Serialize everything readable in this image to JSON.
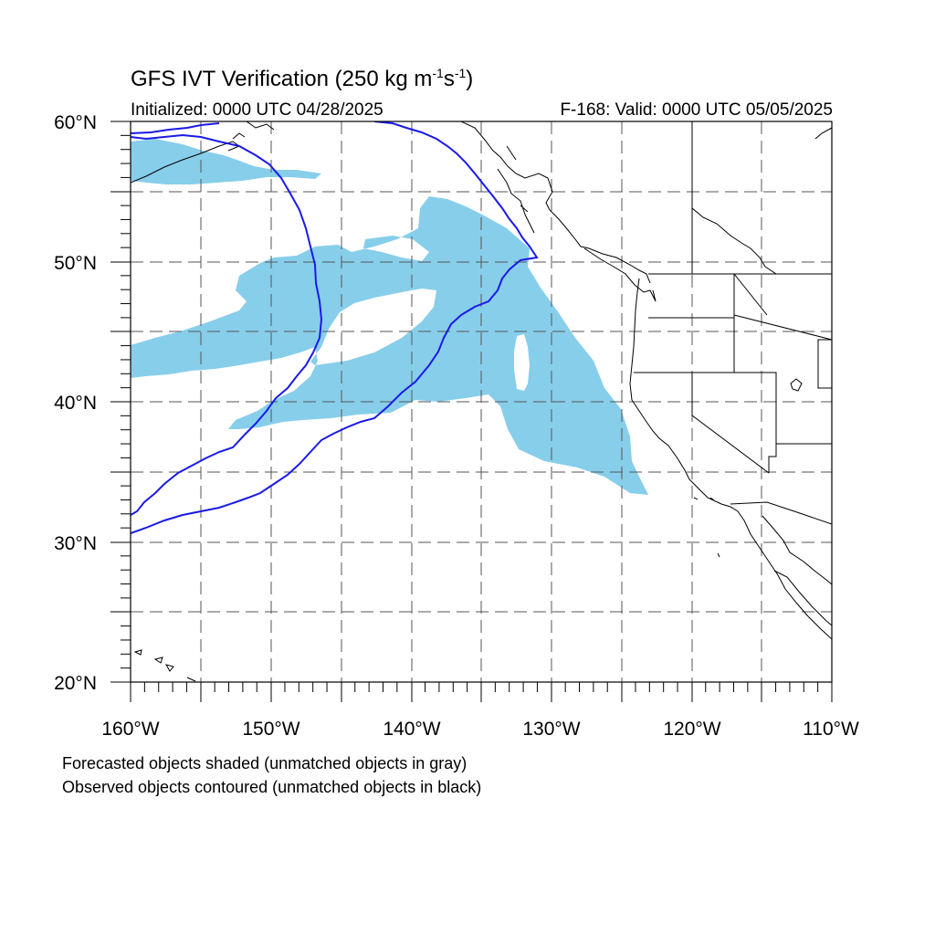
{
  "title": {
    "main": "GFS IVT Verification (250 kg m",
    "exp1": "-1",
    "mid": "s",
    "exp2": "-1",
    "tail": ")"
  },
  "subtitle": {
    "initialized": "Initialized: 0000 UTC 04/28/2025",
    "valid": "F-168: Valid: 0000 UTC 05/05/2025"
  },
  "map": {
    "projection": "cylindrical equidistant",
    "lon_range": [
      -160,
      -110
    ],
    "lat_range": [
      20,
      60
    ],
    "grid_lines": "dashed every 5 degrees",
    "lat_labels": [
      {
        "lat": 60,
        "text": "60°N"
      },
      {
        "lat": 50,
        "text": "50°N"
      },
      {
        "lat": 40,
        "text": "40°N"
      },
      {
        "lat": 30,
        "text": "30°N"
      },
      {
        "lat": 20,
        "text": "20°N"
      }
    ],
    "lon_labels": [
      {
        "lon": -160,
        "text": "160°W"
      },
      {
        "lon": -150,
        "text": "150°W"
      },
      {
        "lon": -140,
        "text": "140°W"
      },
      {
        "lon": -130,
        "text": "130°W"
      },
      {
        "lon": -120,
        "text": "120°W"
      },
      {
        "lon": -110,
        "text": "110°W"
      }
    ],
    "colors": {
      "forecast_fill": "#87ceeb",
      "observed_contour": "#1a1ae6",
      "coastline": "#000000",
      "grid": "#555555"
    }
  },
  "notes": {
    "line1": "Forecasted objects shaded (unmatched objects in gray)",
    "line2": "Observed objects contoured (unmatched objects in black)"
  }
}
